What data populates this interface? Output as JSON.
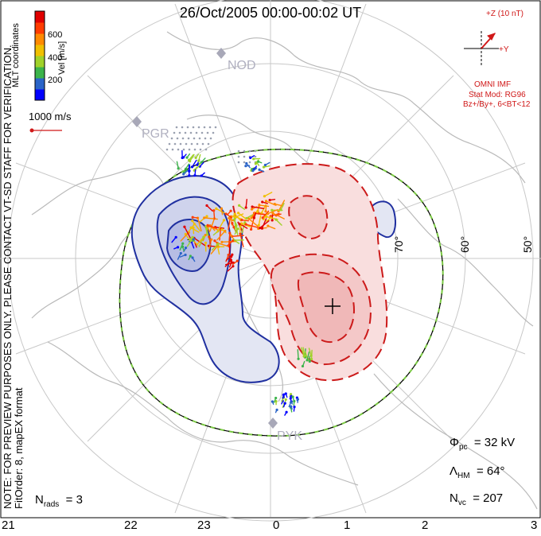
{
  "title": "26/Oct/2005 00:00-00:02 UT",
  "side_text": {
    "preview_note": "NOTE: FOR PREVIEW PURPOSES ONLY. PLEASE CONTACT VT-SD STAFF FOR VERIFICATION.",
    "fit_order": "FitOrder: 8, mapEX format",
    "mlt": "MLT coordinates"
  },
  "colorbar": {
    "label": "Vel [m/s]",
    "ticks": [
      "600",
      "400",
      "200"
    ],
    "colors": [
      "#0000ff",
      "#2a64c8",
      "#3cb44b",
      "#a0d22a",
      "#f0c000",
      "#ff8a00",
      "#ff3c00",
      "#e00000"
    ]
  },
  "scale_vector": {
    "label": "1000 m/s"
  },
  "imf": {
    "axis_z": "+Z (10 nT)",
    "axis_y": "+Y",
    "source": "OMNI IMF",
    "stat_mod": "Stat Mod: RG96",
    "condition": "Bz+/By+, 6<BT<12"
  },
  "stations": [
    "NOD",
    "PGR",
    "PYK"
  ],
  "lat_labels": [
    "70°",
    "60°",
    "50°"
  ],
  "x_ticks": [
    "21",
    "22",
    "23",
    "0",
    "1",
    "2",
    "3"
  ],
  "stats": {
    "phi_symbol": "Φ",
    "phi_sub": "pc",
    "phi_value": "= 32 kV",
    "lambda_symbol": "Λ",
    "lambda_sub": "HM",
    "lambda_value": "= 64°",
    "nvc_symbol": "N",
    "nvc_sub": "vc",
    "nvc_value": "= 207",
    "nrads_symbol": "N",
    "nrads_sub": "rads",
    "nrads_value": "= 3"
  }
}
